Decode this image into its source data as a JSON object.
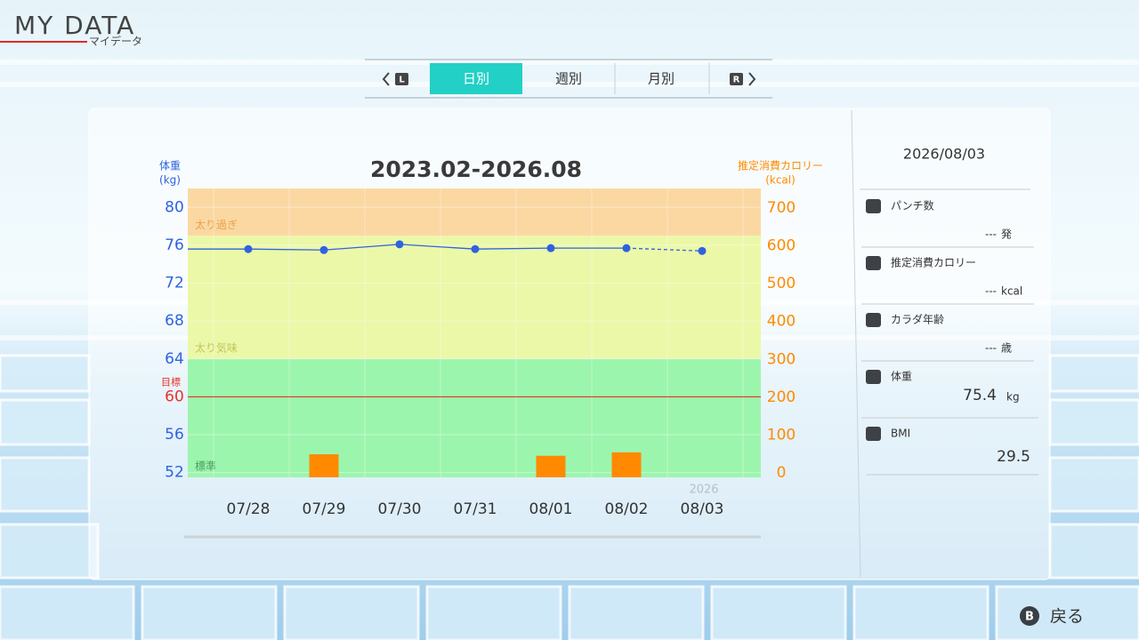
{
  "header": {
    "title": "MY DATA",
    "subtitle": "マイデータ"
  },
  "tabs": {
    "left_button": "L",
    "items": [
      "日別",
      "週別",
      "月別"
    ],
    "active": 0,
    "right_button": "R"
  },
  "chart_data": {
    "type": "line",
    "title": "2023.02-2026.08",
    "yunit": "(kg)",
    "y2unit": "(kcal)",
    "categories": [
      null,
      "07/28",
      "07/29",
      "07/30",
      "07/31",
      "08/01",
      "08/02",
      "08/03"
    ],
    "year_label": "2026",
    "series": [
      {
        "name": "体重",
        "color": "#2f62e0",
        "values": [
          75.6,
          75.6,
          75.5,
          76.1,
          75.6,
          75.7,
          75.7,
          75.4
        ],
        "dashed_last_segment": true
      },
      {
        "name": "推定消費カロリー",
        "type": "bar",
        "axis": "y2",
        "color": "#ff8a00",
        "values": [
          null,
          null,
          49,
          null,
          null,
          45,
          54,
          null
        ]
      }
    ],
    "ylim": [
      51.5,
      82
    ],
    "yticks": [
      52,
      56,
      60,
      64,
      68,
      72,
      76,
      80
    ],
    "y2lim": [
      -12,
      752
    ],
    "y2ticks": [
      0,
      100,
      200,
      300,
      400,
      500,
      600,
      700
    ],
    "goal": {
      "label": "目標",
      "value": 60,
      "color": "#e8322a"
    },
    "zones": [
      {
        "label": "太り過ぎ",
        "from": 77,
        "color": "#fbd8a2",
        "label_color": "#eaa44a"
      },
      {
        "label": "太り気味",
        "from": 64,
        "color": "#ebf8a8",
        "label_color": "#c4c45a"
      },
      {
        "label": "標準",
        "color": "#9cf5ad",
        "label_color": "#4c9e5e"
      }
    ],
    "grid": true
  },
  "panel": {
    "date": "2026/08/03",
    "items": [
      {
        "label": "パンチ数",
        "value": "---",
        "unit": "発"
      },
      {
        "label": "推定消費カロリー",
        "value": "---",
        "unit": "kcal"
      },
      {
        "label": "カラダ年齢",
        "value": "---",
        "unit": "歳"
      },
      {
        "label": "体重",
        "value": "75.4",
        "unit": "kg"
      },
      {
        "label": "BMI",
        "value": "29.5"
      }
    ]
  },
  "footer": {
    "button": "B",
    "label": "戻る"
  }
}
